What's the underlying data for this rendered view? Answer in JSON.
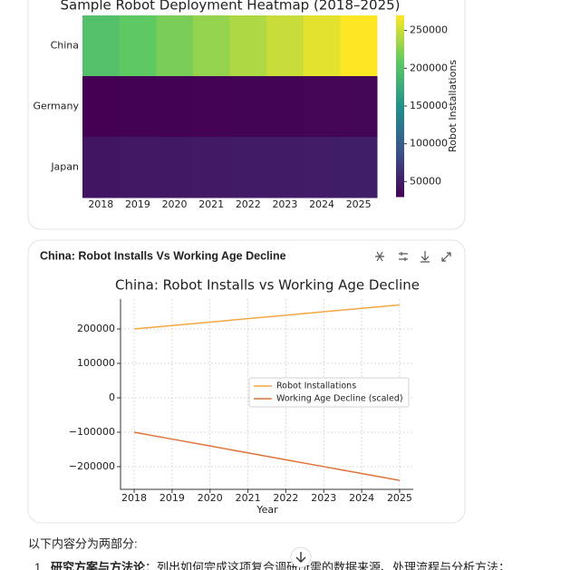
{
  "chart_data": [
    {
      "type": "heatmap",
      "title": "Sample Robot Deployment Heatmap (2018–2025)",
      "x": [
        2018,
        2019,
        2020,
        2021,
        2022,
        2023,
        2024,
        2025
      ],
      "y": [
        "China",
        "Germany",
        "Japan"
      ],
      "values": [
        [
          200000,
          210000,
          220000,
          230000,
          240000,
          250000,
          260000,
          270000
        ],
        [
          30000,
          30500,
          31000,
          31500,
          32000,
          32500,
          33000,
          33500
        ],
        [
          45000,
          46000,
          47000,
          48000,
          49000,
          50000,
          51000,
          52000
        ]
      ],
      "colormap": "viridis",
      "clim": [
        30000,
        270000
      ],
      "colorbar_label": "Robot Installations",
      "colorbar_ticks": [
        50000,
        100000,
        150000,
        200000,
        250000
      ]
    },
    {
      "type": "line",
      "card_title": "China: Robot Installs Vs Working Age Decline",
      "title": "China: Robot Installs vs Working Age Decline",
      "xlabel": "Year",
      "x": [
        2018,
        2019,
        2020,
        2021,
        2022,
        2023,
        2024,
        2025
      ],
      "series": [
        {
          "name": "Robot Installations",
          "color": "#f5a742",
          "values": [
            200000,
            210000,
            220000,
            230000,
            240000,
            250000,
            260000,
            270000
          ]
        },
        {
          "name": "Working Age Decline (scaled)",
          "color": "#e0753a",
          "values": [
            -100000,
            -120000,
            -140000,
            -160000,
            -180000,
            -200000,
            -220000,
            -240000
          ]
        }
      ],
      "xlim": [
        2017.64,
        2025.36
      ],
      "xticks": [
        2018,
        2019,
        2020,
        2021,
        2022,
        2023,
        2024,
        2025
      ],
      "ylim": [
        -266000,
        287000
      ],
      "yticks": [
        {
          "value": -200000,
          "label": "−200000"
        },
        {
          "value": -100000,
          "label": "−100000"
        },
        0,
        100000,
        200000
      ],
      "grid": true,
      "legend": "center right"
    }
  ],
  "text": {
    "intro": "以下内容分为两部分:",
    "item_number": "1.",
    "item_bold": "研究方案与方法论",
    "item_rest": "：列出如何完成这项复合调研所需的数据来源、处理流程与分析方法；"
  }
}
